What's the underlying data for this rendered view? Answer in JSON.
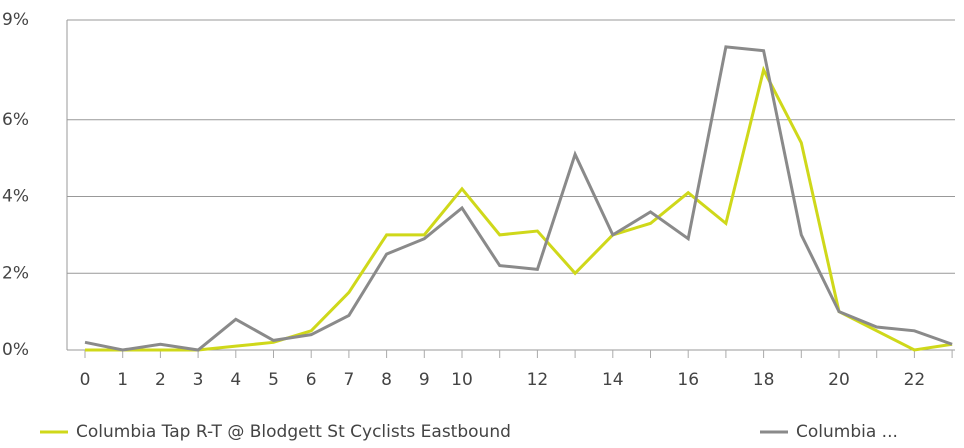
{
  "chart_data": {
    "type": "line",
    "categories": [
      "0",
      "1",
      "2",
      "3",
      "4",
      "5",
      "6",
      "7",
      "8",
      "9",
      "10",
      null,
      "12",
      null,
      "14",
      null,
      "16",
      null,
      "18",
      null,
      "20",
      null,
      "22",
      null
    ],
    "series": [
      {
        "name": "Columbia Tap R-T @ Blodgett St Cyclists Eastbound",
        "color": "#cfd81a",
        "values": [
          0,
          0,
          0,
          0,
          0.1,
          0.2,
          0.5,
          1.5,
          3.0,
          3.0,
          4.2,
          3.0,
          3.1,
          2.0,
          3.0,
          3.3,
          4.1,
          3.3,
          7.3,
          5.4,
          1.0,
          0.5,
          0,
          0.15
        ]
      },
      {
        "name": "Columbia ...",
        "color": "#8a8a8a",
        "values": [
          0.2,
          0,
          0.15,
          0,
          0.8,
          0.25,
          0.4,
          0.9,
          2.5,
          2.9,
          3.7,
          2.2,
          2.1,
          5.1,
          3.0,
          3.6,
          2.9,
          7.9,
          7.8,
          3.0,
          1.0,
          0.6,
          0.5,
          0.15
        ]
      }
    ],
    "ylim": [
      0,
      8.6
    ],
    "yticks": [
      {
        "value": 0,
        "label": "0%"
      },
      {
        "value": 2,
        "label": "2%"
      },
      {
        "value": 4,
        "label": "4%"
      },
      {
        "value": 6,
        "label": "6%"
      },
      {
        "value": 8.6,
        "label": "9%"
      }
    ],
    "grid": true
  }
}
